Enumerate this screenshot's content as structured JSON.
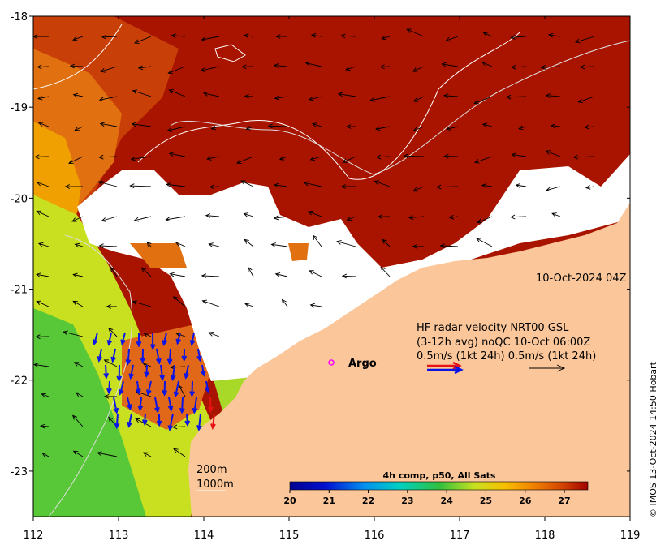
{
  "map": {
    "x_ticks": [
      "112",
      "113",
      "114",
      "115",
      "116",
      "117",
      "118",
      "119"
    ],
    "y_ticks": [
      "-18",
      "-19",
      "-20",
      "-21",
      "-22",
      "-23"
    ],
    "lon_range": [
      112,
      119
    ],
    "lat_range": [
      -23.5,
      -18
    ]
  },
  "labels": {
    "timestamp": "10-Oct-2024 04Z",
    "hf_line1": "HF radar velocity  NRT00 GSL",
    "hf_line2": "(3-12h avg) noQC 10-Oct 06:00Z",
    "hf_line3": "0.5m/s (1kt 24h)  0.5m/s (1kt 24h)",
    "argo": "Argo",
    "depth_200": "200m",
    "depth_1000": "1000m",
    "credit": "© IMOS 13-Oct-2024 14:50 Hobart"
  },
  "colorbar": {
    "title": "4h comp, p50, All Sats",
    "ticks": [
      "20",
      "21",
      "22",
      "23",
      "24",
      "25",
      "26",
      "27"
    ],
    "range": [
      20,
      27.6
    ]
  },
  "colors": {
    "land": "#fbc79a",
    "sst_warm": "#a81400",
    "sst_mid": "#e07010",
    "sst_cool": "#c8e020",
    "sst_cold": "#58c838",
    "radar_blue": "#0a14e6",
    "radar_red": "#e61414",
    "argo": "#ff00ff"
  }
}
